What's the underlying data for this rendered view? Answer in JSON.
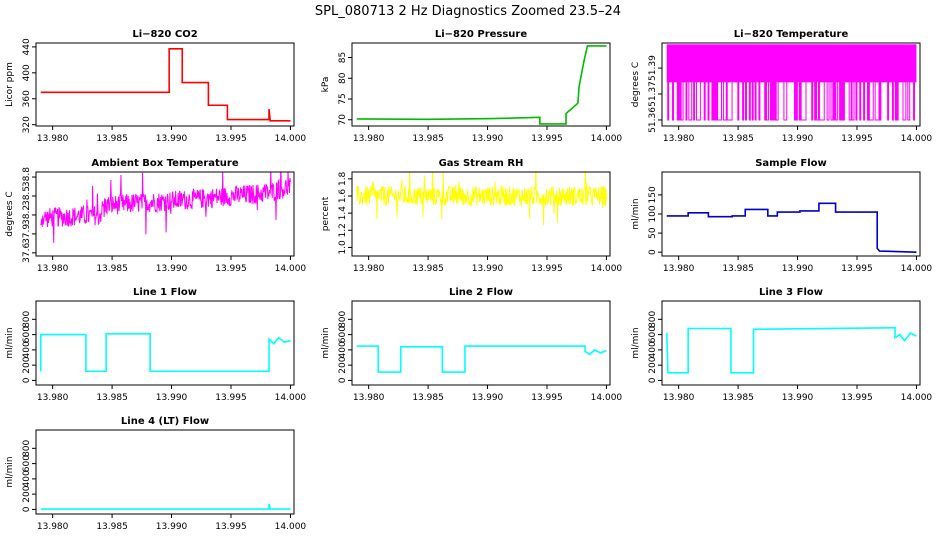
{
  "title": "SPL_080713  2 Hz Diagnostics Zoomed 23.5–24",
  "chart_data": [
    {
      "type": "line",
      "title": "Li−820 CO2",
      "ylabel": "Licor ppm",
      "color": "#ff0000",
      "xlim": [
        13.9786,
        14.0003
      ],
      "ylim": [
        318,
        446
      ],
      "xticks": [
        {
          "v": 13.98,
          "label": "13.980"
        },
        {
          "v": 13.985,
          "label": "13.985"
        },
        {
          "v": 13.99,
          "label": "13.990"
        },
        {
          "v": 13.995,
          "label": "13.995"
        },
        {
          "v": 14.0,
          "label": "14.000"
        }
      ],
      "yticks": [
        {
          "v": 320,
          "label": "320"
        },
        {
          "v": 360,
          "label": "360"
        },
        {
          "v": 400,
          "label": "400"
        },
        {
          "v": 440,
          "label": "440"
        }
      ],
      "series": [
        {
          "x": [
            13.979,
            13.9898,
            13.9898,
            13.9909,
            13.9909,
            13.9931,
            13.9931,
            13.9947,
            13.9947,
            13.9982,
            13.9982,
            13.9983,
            13.9984,
            14.0
          ],
          "y": [
            370,
            370,
            437,
            437,
            385,
            385,
            350,
            350,
            328,
            328,
            344,
            326,
            326,
            326
          ]
        }
      ]
    },
    {
      "type": "line",
      "title": "Li−820 Pressure",
      "ylabel": "kPa",
      "color": "#00bb00",
      "xlim": [
        13.9786,
        14.0003
      ],
      "ylim": [
        68.5,
        88.5
      ],
      "xticks": [
        {
          "v": 13.98,
          "label": "13.980"
        },
        {
          "v": 13.985,
          "label": "13.985"
        },
        {
          "v": 13.99,
          "label": "13.990"
        },
        {
          "v": 13.995,
          "label": "13.995"
        },
        {
          "v": 14.0,
          "label": "14.000"
        }
      ],
      "yticks": [
        {
          "v": 70,
          "label": "70"
        },
        {
          "v": 75,
          "label": "75"
        },
        {
          "v": 80,
          "label": "80"
        },
        {
          "v": 85,
          "label": "85"
        }
      ],
      "series": [
        {
          "x": [
            13.979,
            13.985,
            13.9905,
            13.9944,
            13.9944,
            13.9966,
            13.9966,
            13.9976,
            13.9977,
            13.9979,
            13.9981,
            13.9984,
            14.0
          ],
          "y": [
            70.2,
            70.1,
            70.3,
            70.6,
            69.0,
            69.0,
            71.5,
            74,
            78,
            81,
            84,
            87.8,
            87.8
          ]
        }
      ]
    },
    {
      "type": "line",
      "title": "Li−820 Temperature",
      "ylabel": "degrees C",
      "color": "#ff00ff",
      "xlim": [
        13.9786,
        14.0003
      ],
      "ylim": [
        51.3565,
        51.4045
      ],
      "xticks": [
        {
          "v": 13.98,
          "label": "13.980"
        },
        {
          "v": 13.985,
          "label": "13.985"
        },
        {
          "v": 13.99,
          "label": "13.990"
        },
        {
          "v": 13.995,
          "label": "13.995"
        },
        {
          "v": 14.0,
          "label": "14.000"
        }
      ],
      "yticks": [
        {
          "v": 51.36,
          "label": "51.36"
        },
        {
          "v": 51.375,
          "label": "51.37"
        },
        {
          "v": 51.39,
          "label": "51.39"
        }
      ],
      "series": [
        {
          "x": [
            13.979,
            14.0
          ],
          "y": [
            51.402,
            51.36
          ],
          "pattern": "binary-noise"
        }
      ]
    },
    {
      "type": "line",
      "title": "Ambient Box Temperature",
      "ylabel": "degrees C",
      "color": "#ff00ff",
      "xlim": [
        13.9786,
        14.0003
      ],
      "ylim": [
        37.55,
        38.88
      ],
      "xticks": [
        {
          "v": 13.98,
          "label": "13.980"
        },
        {
          "v": 13.985,
          "label": "13.985"
        },
        {
          "v": 13.99,
          "label": "13.990"
        },
        {
          "v": 13.995,
          "label": "13.995"
        },
        {
          "v": 14.0,
          "label": "14.000"
        }
      ],
      "yticks": [
        {
          "v": 37.6,
          "label": "37.6"
        },
        {
          "v": 37.9,
          "label": "37.9"
        },
        {
          "v": 38.2,
          "label": "38.2"
        },
        {
          "v": 38.5,
          "label": "38.5"
        },
        {
          "v": 38.8,
          "label": "38.8"
        }
      ],
      "series": [
        {
          "x": [
            13.979,
            13.984,
            13.9843,
            13.992,
            13.9981,
            14.0
          ],
          "y": [
            38.15,
            38.2,
            38.35,
            38.45,
            38.55,
            38.65
          ],
          "pattern": "noise"
        }
      ]
    },
    {
      "type": "line",
      "title": "Gas Stream RH",
      "ylabel": "percent",
      "color": "#ffff00",
      "xlim": [
        13.9786,
        14.0003
      ],
      "ylim": [
        0.9,
        1.88
      ],
      "xticks": [
        {
          "v": 13.98,
          "label": "13.980"
        },
        {
          "v": 13.985,
          "label": "13.985"
        },
        {
          "v": 13.99,
          "label": "13.990"
        },
        {
          "v": 13.995,
          "label": "13.995"
        },
        {
          "v": 14.0,
          "label": "14.000"
        }
      ],
      "yticks": [
        {
          "v": 1.0,
          "label": "1.0"
        },
        {
          "v": 1.2,
          "label": "1.2"
        },
        {
          "v": 1.4,
          "label": "1.4"
        },
        {
          "v": 1.6,
          "label": "1.6"
        },
        {
          "v": 1.8,
          "label": "1.8"
        }
      ],
      "series": [
        {
          "x": [
            13.979,
            14.0
          ],
          "y": [
            1.6,
            1.6
          ],
          "pattern": "noise"
        }
      ]
    },
    {
      "type": "line",
      "title": "Sample Flow",
      "ylabel": "ml/min",
      "color": "#0000cc",
      "xlim": [
        13.9786,
        14.0003
      ],
      "ylim": [
        -10,
        210
      ],
      "xticks": [
        {
          "v": 13.98,
          "label": "13.980"
        },
        {
          "v": 13.985,
          "label": "13.985"
        },
        {
          "v": 13.99,
          "label": "13.990"
        },
        {
          "v": 13.995,
          "label": "13.995"
        },
        {
          "v": 14.0,
          "label": "14.000"
        }
      ],
      "yticks": [
        {
          "v": 0,
          "label": "0"
        },
        {
          "v": 50,
          "label": "50"
        },
        {
          "v": 100,
          "label": "100"
        },
        {
          "v": 150,
          "label": "150"
        }
      ],
      "series": [
        {
          "x": [
            13.979,
            13.9808,
            13.9808,
            13.9825,
            13.9825,
            13.9845,
            13.9845,
            13.9856,
            13.9856,
            13.9875,
            13.9875,
            13.9883,
            13.9883,
            13.9902,
            13.9902,
            13.9918,
            13.9918,
            13.9932,
            13.9932,
            13.9967,
            13.9967,
            13.9969,
            14.0
          ],
          "y": [
            95,
            95,
            103,
            103,
            93,
            93,
            95,
            95,
            112,
            112,
            95,
            95,
            105,
            105,
            108,
            108,
            128,
            128,
            105,
            105,
            10,
            3,
            0
          ]
        }
      ]
    },
    {
      "type": "line",
      "title": "Line 1 Flow",
      "ylabel": "ml/min",
      "color": "#00ffff",
      "xlim": [
        13.9786,
        14.0003
      ],
      "ylim": [
        -60,
        1040
      ],
      "xticks": [
        {
          "v": 13.98,
          "label": "13.980"
        },
        {
          "v": 13.985,
          "label": "13.985"
        },
        {
          "v": 13.99,
          "label": "13.990"
        },
        {
          "v": 13.995,
          "label": "13.995"
        },
        {
          "v": 14.0,
          "label": "14.000"
        }
      ],
      "yticks": [
        {
          "v": 0,
          "label": "0"
        },
        {
          "v": 200,
          "label": "200"
        },
        {
          "v": 400,
          "label": "400"
        },
        {
          "v": 600,
          "label": "600"
        },
        {
          "v": 800,
          "label": "800"
        }
      ],
      "series": [
        {
          "x": [
            13.979,
            13.979,
            13.9828,
            13.9828,
            13.9845,
            13.9845,
            13.9882,
            13.9882,
            13.9982,
            13.9982,
            13.9986,
            13.999,
            13.9995,
            14.0
          ],
          "y": [
            120,
            600,
            600,
            120,
            120,
            610,
            610,
            120,
            120,
            540,
            480,
            560,
            500,
            520
          ]
        }
      ]
    },
    {
      "type": "line",
      "title": "Line 2 Flow",
      "ylabel": "ml/min",
      "color": "#00ffff",
      "xlim": [
        13.9786,
        14.0003
      ],
      "ylim": [
        -60,
        1040
      ],
      "xticks": [
        {
          "v": 13.98,
          "label": "13.980"
        },
        {
          "v": 13.985,
          "label": "13.985"
        },
        {
          "v": 13.99,
          "label": "13.990"
        },
        {
          "v": 13.995,
          "label": "13.995"
        },
        {
          "v": 14.0,
          "label": "14.000"
        }
      ],
      "yticks": [
        {
          "v": 0,
          "label": "0"
        },
        {
          "v": 200,
          "label": "200"
        },
        {
          "v": 400,
          "label": "400"
        },
        {
          "v": 600,
          "label": "600"
        },
        {
          "v": 800,
          "label": "800"
        }
      ],
      "series": [
        {
          "x": [
            13.979,
            13.9808,
            13.9808,
            13.9827,
            13.9827,
            13.9862,
            13.9862,
            13.9881,
            13.9881,
            13.9982,
            13.9982,
            13.9986,
            13.999,
            13.9995,
            14.0
          ],
          "y": [
            450,
            450,
            110,
            110,
            440,
            440,
            110,
            110,
            450,
            450,
            380,
            340,
            400,
            360,
            390
          ]
        }
      ]
    },
    {
      "type": "line",
      "title": "Line 3 Flow",
      "ylabel": "ml/min",
      "color": "#00ffff",
      "xlim": [
        13.9786,
        14.0003
      ],
      "ylim": [
        -60,
        1040
      ],
      "xticks": [
        {
          "v": 13.98,
          "label": "13.980"
        },
        {
          "v": 13.985,
          "label": "13.985"
        },
        {
          "v": 13.99,
          "label": "13.990"
        },
        {
          "v": 13.995,
          "label": "13.995"
        },
        {
          "v": 14.0,
          "label": "14.000"
        }
      ],
      "yticks": [
        {
          "v": 0,
          "label": "0"
        },
        {
          "v": 200,
          "label": "200"
        },
        {
          "v": 400,
          "label": "400"
        },
        {
          "v": 600,
          "label": "600"
        },
        {
          "v": 800,
          "label": "800"
        }
      ],
      "series": [
        {
          "x": [
            13.979,
            13.979,
            13.9791,
            13.9808,
            13.9808,
            13.9844,
            13.9844,
            13.9863,
            13.9863,
            13.9982,
            13.9982,
            13.9986,
            13.999,
            13.9995,
            14.0
          ],
          "y": [
            620,
            620,
            100,
            100,
            680,
            680,
            100,
            100,
            670,
            690,
            560,
            600,
            520,
            620,
            580
          ]
        }
      ]
    },
    {
      "type": "line",
      "title": "Line 4 (LT) Flow",
      "ylabel": "ml/min",
      "color": "#00ffff",
      "xlim": [
        13.9786,
        14.0003
      ],
      "ylim": [
        -60,
        1040
      ],
      "xticks": [
        {
          "v": 13.98,
          "label": "13.980"
        },
        {
          "v": 13.985,
          "label": "13.985"
        },
        {
          "v": 13.99,
          "label": "13.990"
        },
        {
          "v": 13.995,
          "label": "13.995"
        },
        {
          "v": 14.0,
          "label": "14.000"
        }
      ],
      "yticks": [
        {
          "v": 0,
          "label": "0"
        },
        {
          "v": 200,
          "label": "200"
        },
        {
          "v": 400,
          "label": "400"
        },
        {
          "v": 600,
          "label": "600"
        },
        {
          "v": 800,
          "label": "800"
        }
      ],
      "series": [
        {
          "x": [
            13.979,
            13.9982,
            13.9982,
            13.9983,
            14.0
          ],
          "y": [
            5,
            5,
            70,
            5,
            5
          ]
        }
      ]
    }
  ]
}
